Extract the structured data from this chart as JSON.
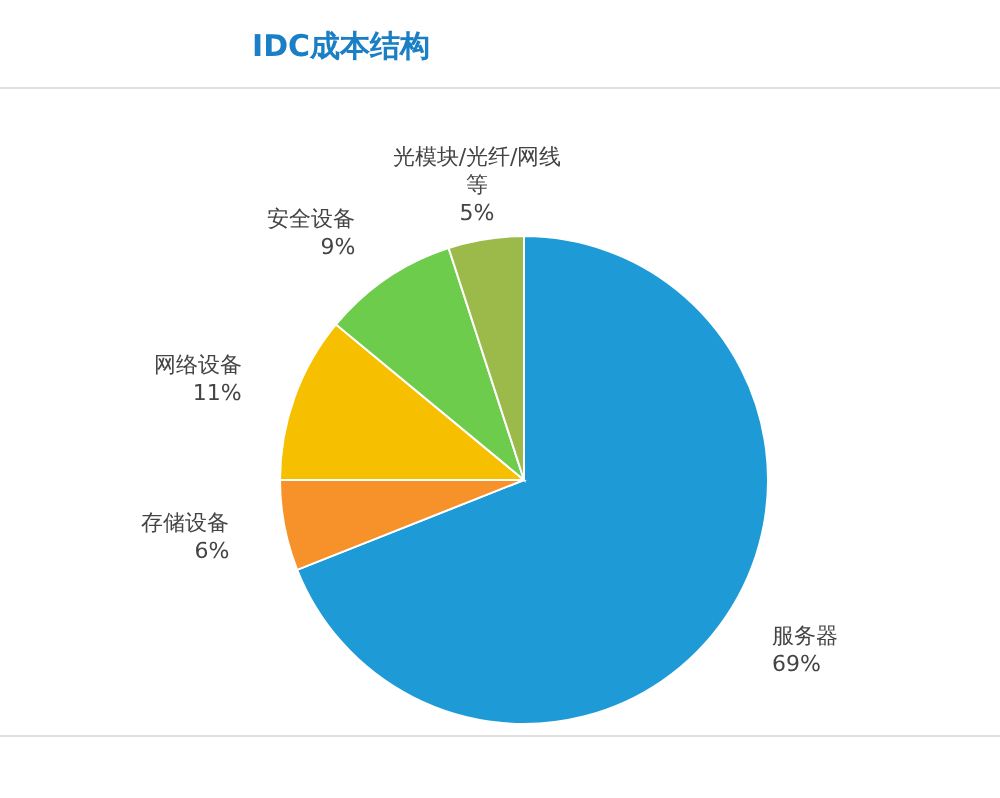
{
  "chart_data": {
    "type": "pie",
    "title": "IDC成本结构",
    "categories": [
      "服务器",
      "存储设备",
      "网络设备",
      "安全设备",
      "光模块/光纤/网线等"
    ],
    "values": [
      69,
      6,
      11,
      9,
      5
    ],
    "value_labels": [
      "69%",
      "6%",
      "11%",
      "9%",
      "5%"
    ],
    "colors": [
      "#1e9bd7",
      "#f7922a",
      "#f6c000",
      "#6dcc4b",
      "#9cba4a"
    ]
  }
}
